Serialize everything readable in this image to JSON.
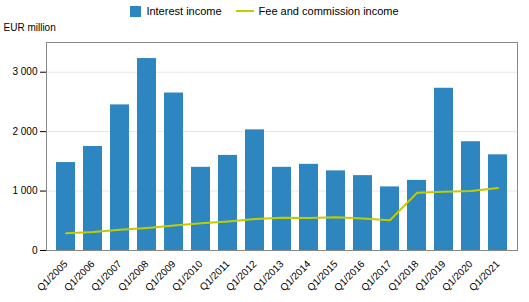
{
  "chart_data": {
    "type": "bar",
    "ylabel": "EUR million",
    "categories": [
      "Q1/2005",
      "Q1/2006",
      "Q1/2007",
      "Q1/2008",
      "Q1/2009",
      "Q1/2010",
      "Q1/2011",
      "Q1/2012",
      "Q1/2013",
      "Q1/2014",
      "Q1/2015",
      "Q1/2016",
      "Q1/2017",
      "Q1/2018",
      "Q1/2019",
      "Q1/2020",
      "Q1/2021"
    ],
    "series": [
      {
        "name": "Interest income",
        "type": "bar",
        "color": "#2E86C1",
        "values": [
          1480,
          1750,
          2450,
          3230,
          2650,
          1400,
          1600,
          2030,
          1400,
          1450,
          1340,
          1260,
          1070,
          1180,
          2730,
          1830,
          1610
        ]
      },
      {
        "name": "Fee and commission income",
        "type": "line",
        "color": "#BFCD00",
        "values": [
          290,
          310,
          350,
          380,
          420,
          460,
          490,
          530,
          550,
          545,
          560,
          540,
          510,
          970,
          990,
          1000,
          1050
        ]
      }
    ],
    "ylim": [
      0,
      3500
    ],
    "yticks": [
      0,
      {
        "value": 1000,
        "label": "1 000"
      },
      {
        "value": 2000,
        "label": "2 000"
      },
      {
        "value": 3000,
        "label": "3 000"
      }
    ],
    "grid": true,
    "legend": "top"
  }
}
